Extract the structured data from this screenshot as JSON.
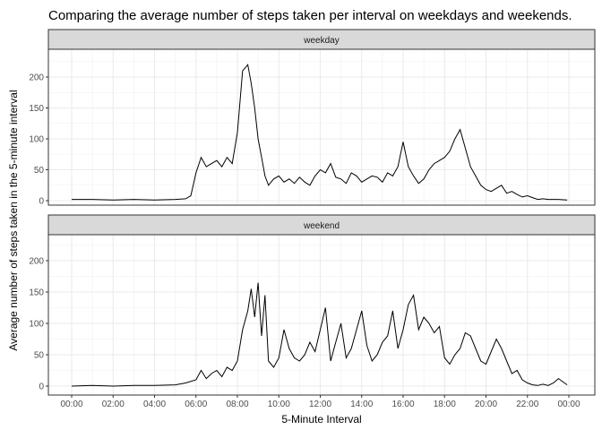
{
  "chart_data": {
    "type": "line",
    "title": "Comparing the average number of steps taken per interval on weekdays and weekends.",
    "xlabel": "5-Minute Interval",
    "ylabel": "Average number of steps taken in the 5-minute interval",
    "x_ticks": [
      "00:00",
      "02:00",
      "04:00",
      "06:00",
      "08:00",
      "10:00",
      "12:00",
      "14:00",
      "16:00",
      "18:00",
      "20:00",
      "22:00",
      "00:00"
    ],
    "y_ticks": [
      0,
      50,
      100,
      150,
      200
    ],
    "xlim": [
      "00:00",
      "24:00"
    ],
    "ylim": [
      0,
      230
    ],
    "grid": true,
    "line_color": "#000000",
    "panels": [
      {
        "name": "weekday",
        "x": [
          "00:00",
          "01:00",
          "02:00",
          "03:00",
          "04:00",
          "05:00",
          "05:30",
          "05:45",
          "06:00",
          "06:15",
          "06:30",
          "06:45",
          "07:00",
          "07:15",
          "07:30",
          "07:45",
          "08:00",
          "08:15",
          "08:30",
          "08:40",
          "08:50",
          "09:00",
          "09:10",
          "09:20",
          "09:30",
          "09:45",
          "10:00",
          "10:15",
          "10:30",
          "10:45",
          "11:00",
          "11:15",
          "11:30",
          "11:45",
          "12:00",
          "12:15",
          "12:30",
          "12:45",
          "13:00",
          "13:15",
          "13:30",
          "13:45",
          "14:00",
          "14:15",
          "14:30",
          "14:45",
          "15:00",
          "15:15",
          "15:30",
          "15:45",
          "16:00",
          "16:15",
          "16:30",
          "16:45",
          "17:00",
          "17:15",
          "17:30",
          "17:45",
          "18:00",
          "18:15",
          "18:30",
          "18:45",
          "19:00",
          "19:15",
          "19:30",
          "19:45",
          "20:00",
          "20:15",
          "20:30",
          "20:45",
          "21:00",
          "21:15",
          "21:30",
          "21:45",
          "22:00",
          "22:15",
          "22:30",
          "22:45",
          "23:00",
          "23:30",
          "23:55"
        ],
        "y": [
          2,
          2,
          1,
          2,
          1,
          2,
          3,
          8,
          45,
          70,
          55,
          60,
          65,
          55,
          70,
          60,
          110,
          210,
          220,
          190,
          150,
          100,
          70,
          40,
          25,
          35,
          40,
          30,
          35,
          28,
          38,
          30,
          25,
          40,
          50,
          45,
          60,
          38,
          35,
          28,
          45,
          40,
          30,
          35,
          40,
          38,
          30,
          45,
          40,
          55,
          95,
          55,
          40,
          28,
          35,
          50,
          60,
          65,
          70,
          80,
          100,
          115,
          85,
          55,
          40,
          25,
          18,
          15,
          20,
          25,
          12,
          15,
          10,
          6,
          8,
          5,
          2,
          3,
          2,
          2,
          1
        ]
      },
      {
        "name": "weekend",
        "x": [
          "00:00",
          "01:00",
          "02:00",
          "03:00",
          "04:00",
          "05:00",
          "05:30",
          "06:00",
          "06:15",
          "06:30",
          "06:45",
          "07:00",
          "07:15",
          "07:30",
          "07:45",
          "08:00",
          "08:15",
          "08:30",
          "08:40",
          "08:50",
          "09:00",
          "09:10",
          "09:20",
          "09:30",
          "09:45",
          "10:00",
          "10:15",
          "10:30",
          "10:45",
          "11:00",
          "11:15",
          "11:30",
          "11:45",
          "12:00",
          "12:15",
          "12:30",
          "12:45",
          "13:00",
          "13:15",
          "13:30",
          "13:45",
          "14:00",
          "14:15",
          "14:30",
          "14:45",
          "15:00",
          "15:15",
          "15:30",
          "15:45",
          "16:00",
          "16:15",
          "16:30",
          "16:45",
          "17:00",
          "17:15",
          "17:30",
          "17:45",
          "18:00",
          "18:15",
          "18:30",
          "18:45",
          "19:00",
          "19:15",
          "19:30",
          "19:45",
          "20:00",
          "20:15",
          "20:30",
          "20:45",
          "21:00",
          "21:15",
          "21:30",
          "21:45",
          "22:00",
          "22:15",
          "22:30",
          "22:45",
          "23:00",
          "23:15",
          "23:30",
          "23:55"
        ],
        "y": [
          0,
          1,
          0,
          1,
          1,
          2,
          5,
          10,
          25,
          12,
          20,
          25,
          15,
          30,
          25,
          40,
          90,
          120,
          155,
          110,
          165,
          80,
          145,
          40,
          30,
          45,
          90,
          60,
          45,
          40,
          50,
          70,
          55,
          90,
          125,
          40,
          70,
          100,
          45,
          60,
          90,
          120,
          65,
          40,
          50,
          70,
          80,
          120,
          60,
          90,
          130,
          145,
          90,
          110,
          100,
          85,
          95,
          45,
          35,
          50,
          60,
          85,
          80,
          60,
          40,
          35,
          55,
          75,
          60,
          40,
          20,
          25,
          10,
          5,
          2,
          1,
          3,
          1,
          5,
          12,
          2
        ]
      }
    ]
  }
}
